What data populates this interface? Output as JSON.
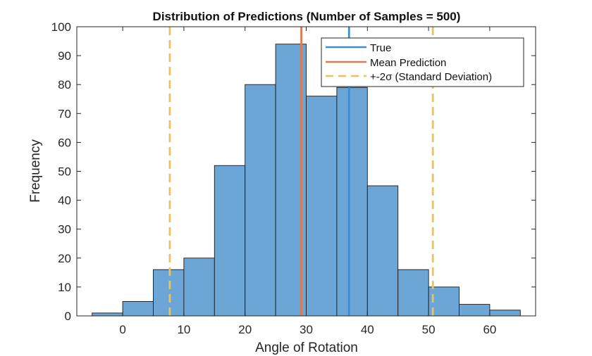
{
  "chart_data": {
    "type": "bar",
    "subtype": "histogram",
    "title": "Distribution of Predictions (Number of Samples = 500)",
    "xlabel": "Angle of Rotation",
    "ylabel": "Frequency",
    "xlim": [
      -7.5,
      67.5
    ],
    "ylim": [
      0,
      100
    ],
    "xticks": [
      0,
      10,
      20,
      30,
      40,
      50,
      60
    ],
    "yticks": [
      0,
      10,
      20,
      30,
      40,
      50,
      60,
      70,
      80,
      90,
      100
    ],
    "bin_width": 5,
    "bin_edges": [
      -5,
      0,
      5,
      10,
      15,
      20,
      25,
      30,
      35,
      40,
      45,
      50,
      55,
      60,
      65
    ],
    "counts": [
      1,
      5,
      16,
      20,
      52,
      80,
      94,
      76,
      79,
      45,
      16,
      10,
      4,
      2
    ],
    "bar_color": "#6ca6d6",
    "bar_edge_color": "#1a1a1a",
    "lines": [
      {
        "name": "True",
        "x": 37,
        "color": "#3d8fd1",
        "style": "solid"
      },
      {
        "name": "Mean Prediction",
        "x": 29.2,
        "color": "#e07a4f",
        "style": "solid"
      },
      {
        "name": "+-2σ (Standard Deviation)",
        "x": [
          7.7,
          50.7
        ],
        "color": "#ecc35b",
        "style": "dashed"
      }
    ],
    "legend": {
      "placement": "top-right",
      "entries": [
        "True",
        "Mean Prediction",
        "+-2σ (Standard Deviation)"
      ]
    },
    "grid": false
  }
}
